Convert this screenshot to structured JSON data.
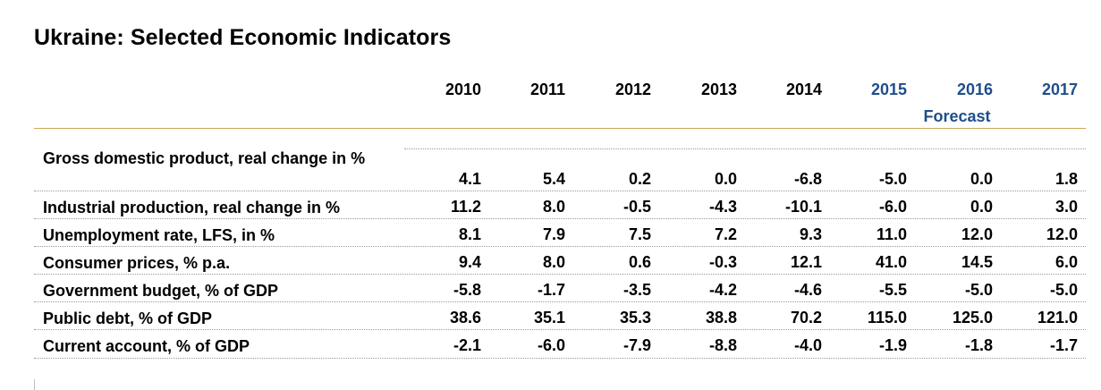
{
  "title": "Ukraine: Selected Economic Indicators",
  "forecast_label": "Forecast",
  "years": [
    "2010",
    "2011",
    "2012",
    "2013",
    "2014",
    "2015",
    "2016",
    "2017"
  ],
  "forecast_years": [
    "2015",
    "2016",
    "2017"
  ],
  "colors": {
    "forecast": "#1f4e8c",
    "header_rule": "#c9a65a",
    "row_rule": "#9a9a9a"
  },
  "chart_data": {
    "type": "table",
    "title": "Ukraine: Selected Economic Indicators",
    "columns": [
      "2010",
      "2011",
      "2012",
      "2013",
      "2014",
      "2015",
      "2016",
      "2017"
    ],
    "rows": [
      {
        "label": "Gross domestic product, real change in %",
        "values": [
          "4.1",
          "5.4",
          "0.2",
          "0.0",
          "-6.8",
          "-5.0",
          "0.0",
          "1.8"
        ]
      },
      {
        "label": "Industrial production, real change in %",
        "values": [
          "11.2",
          "8.0",
          "-0.5",
          "-4.3",
          "-10.1",
          "-6.0",
          "0.0",
          "3.0"
        ]
      },
      {
        "label": "Unemployment rate, LFS, in %",
        "values": [
          "8.1",
          "7.9",
          "7.5",
          "7.2",
          "9.3",
          "11.0",
          "12.0",
          "12.0"
        ]
      },
      {
        "label": "Consumer prices, % p.a.",
        "values": [
          "9.4",
          "8.0",
          "0.6",
          "-0.3",
          "12.1",
          "41.0",
          "14.5",
          "6.0"
        ]
      },
      {
        "label": "Government budget, % of GDP",
        "values": [
          "-5.8",
          "-1.7",
          "-3.5",
          "-4.2",
          "-4.6",
          "-5.5",
          "-5.0",
          "-5.0"
        ]
      },
      {
        "label": "Public debt, % of GDP",
        "values": [
          "38.6",
          "35.1",
          "35.3",
          "38.8",
          "70.2",
          "115.0",
          "125.0",
          "121.0"
        ]
      },
      {
        "label": "Current account, % of GDP",
        "values": [
          "-2.1",
          "-6.0",
          "-7.9",
          "-8.8",
          "-4.0",
          "-1.9",
          "-1.8",
          "-1.7"
        ]
      }
    ]
  }
}
